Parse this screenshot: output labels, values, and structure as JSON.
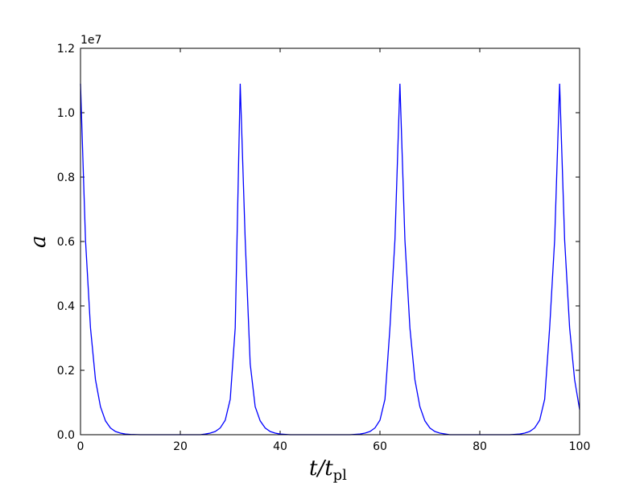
{
  "chart_data": {
    "type": "line",
    "title": "",
    "xlabel": "t/t",
    "xlabel_sub": "pl",
    "ylabel": "a",
    "xlim": [
      0,
      100
    ],
    "ylim": [
      0,
      12000000
    ],
    "y_offset_text": "1e7",
    "x_ticks": [
      0,
      20,
      40,
      60,
      80,
      100
    ],
    "x_tick_labels": [
      "0",
      "20",
      "40",
      "60",
      "80",
      "100"
    ],
    "y_ticks": [
      0,
      2000000,
      4000000,
      6000000,
      8000000,
      10000000,
      12000000
    ],
    "y_tick_labels": [
      "0.0",
      "0.2",
      "0.4",
      "0.6",
      "0.8",
      "1.0",
      "1.2"
    ],
    "grid": false,
    "legend": "none",
    "line_color": "#0000ff",
    "series": [
      {
        "name": "",
        "x": [
          0,
          1,
          2,
          3,
          4,
          5,
          6,
          7,
          8,
          9,
          10,
          12,
          14,
          16,
          18,
          20,
          22,
          24,
          25,
          26,
          27,
          28,
          29,
          30,
          31,
          32,
          33,
          34,
          35,
          36,
          37,
          38,
          39,
          40,
          42,
          44,
          46,
          48,
          50,
          52,
          54,
          56,
          57,
          58,
          59,
          60,
          61,
          62,
          63,
          64,
          65,
          66,
          67,
          68,
          69,
          70,
          71,
          72,
          74,
          76,
          78,
          80,
          82,
          84,
          86,
          88,
          89,
          90,
          91,
          92,
          93,
          94,
          95,
          96,
          97,
          98,
          99,
          100
        ],
        "y": [
          10900000,
          6050000,
          3320000,
          1710000,
          870000,
          430000,
          210000,
          100000,
          50000,
          20000,
          10000,
          0,
          0,
          0,
          0,
          0,
          0,
          0,
          20000,
          50000,
          100000,
          210000,
          450000,
          1100000,
          3320000,
          10900000,
          6050000,
          2200000,
          870000,
          430000,
          210000,
          100000,
          50000,
          20000,
          0,
          0,
          0,
          0,
          0,
          0,
          0,
          20000,
          50000,
          100000,
          210000,
          450000,
          1100000,
          3320000,
          6050000,
          10900000,
          6050000,
          3320000,
          1710000,
          870000,
          430000,
          210000,
          100000,
          50000,
          0,
          0,
          0,
          0,
          0,
          0,
          0,
          20000,
          50000,
          100000,
          210000,
          450000,
          1100000,
          3320000,
          6050000,
          10900000,
          6050000,
          3320000,
          1710000,
          780000
        ]
      }
    ]
  }
}
